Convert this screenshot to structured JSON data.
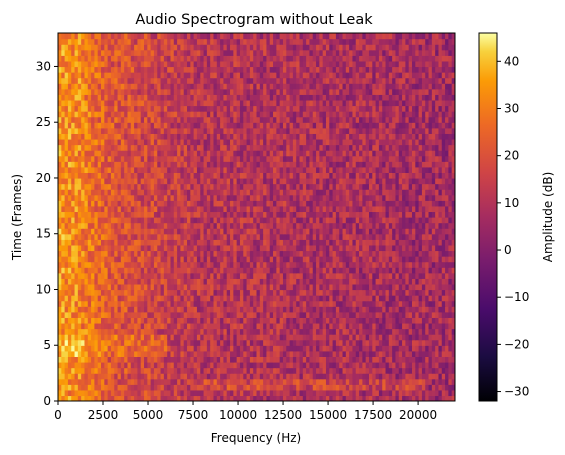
{
  "chart_data": {
    "type": "heatmap",
    "title": "Audio Spectrogram without Leak",
    "xlabel": "Frequency (Hz)",
    "ylabel": "Time (Frames)",
    "xlim": [
      0,
      22050
    ],
    "ylim": [
      0,
      33
    ],
    "x_ticks": [
      "0",
      "2500",
      "5000",
      "7500",
      "10000",
      "12500",
      "15000",
      "17500",
      "20000"
    ],
    "y_ticks": [
      "0",
      "5",
      "10",
      "15",
      "20",
      "25",
      "30"
    ],
    "colorbar": {
      "label": "Amplitude (dB)",
      "min": -32,
      "max": 46,
      "ticks": [
        "−30",
        "−20",
        "−10",
        "0",
        "10",
        "20",
        "30",
        "40"
      ],
      "colormap": "inferno"
    },
    "series": [
      {
        "description_values": "Amplitude (dB) per frame band; high (~35-40) below 1500 Hz, falling to ~0 above 8000 Hz",
        "low_freq_level_db": 35,
        "mid_freq_level_db": 12,
        "high_freq_level_db": 0
      }
    ]
  }
}
